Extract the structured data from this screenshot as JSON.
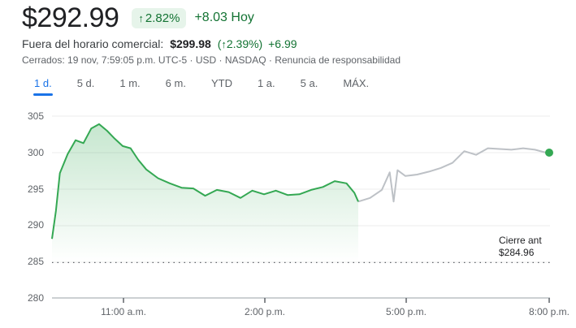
{
  "header": {
    "price": "$292.99",
    "change_pct": "2.82%",
    "change_pct_icon": "arrow-up-icon",
    "change_abs": "+8.03 Hoy"
  },
  "after_hours": {
    "label": "Fuera del horario comercial:",
    "price": "$299.98",
    "pct_open": "(",
    "pct_icon": "arrow-up-icon",
    "pct": "2.39%)",
    "abs": "+6.99"
  },
  "meta": {
    "status": "Cerrados: 19 nov, 7:59:05 p.m. UTC-5 · USD · NASDAQ · ",
    "disclaimer": "Renuncia de responsabilidad"
  },
  "tabs": [
    {
      "label": "1 d.",
      "active": true
    },
    {
      "label": "5 d."
    },
    {
      "label": "1 m."
    },
    {
      "label": "6 m."
    },
    {
      "label": "YTD"
    },
    {
      "label": "1 a."
    },
    {
      "label": "5 a."
    },
    {
      "label": "MÁX."
    }
  ],
  "colors": {
    "positive": "#137333",
    "line_regular": "#34a853",
    "line_after_hours": "#bdc1c6",
    "accent": "#1a73e8",
    "badge_bg": "#e6f4ea"
  },
  "prev_close": {
    "label": "Cierre ant",
    "value": "$284.96"
  },
  "chart_data": {
    "type": "line",
    "title": "",
    "xlabel": "",
    "ylabel": "",
    "ylim": [
      280,
      305
    ],
    "y_ticks": [
      305,
      300,
      295,
      290,
      285,
      280
    ],
    "x_ticks": [
      "11:00 a.m.",
      "2:00 p.m.",
      "5:00 p.m.",
      "8:00 p.m."
    ],
    "grid": true,
    "reference_line": {
      "label": "Cierre ant",
      "value": 284.96
    },
    "series": [
      {
        "name": "Regular session",
        "color": "#34a853",
        "x": [
          "9:30",
          "9:35",
          "9:40",
          "9:50",
          "10:00",
          "10:10",
          "10:20",
          "10:30",
          "10:40",
          "10:50",
          "11:00",
          "11:10",
          "11:20",
          "11:30",
          "11:45",
          "12:00",
          "12:15",
          "12:30",
          "12:45",
          "1:00",
          "1:15",
          "1:30",
          "1:45",
          "2:00",
          "2:15",
          "2:30",
          "2:45",
          "3:00",
          "3:15",
          "3:30",
          "3:45",
          "3:55",
          "4:00"
        ],
        "values": [
          288.2,
          292.0,
          297.2,
          299.8,
          301.7,
          301.3,
          303.3,
          303.9,
          303.0,
          301.9,
          300.9,
          300.6,
          299.0,
          297.7,
          296.5,
          295.8,
          295.2,
          295.1,
          294.1,
          294.9,
          294.6,
          293.8,
          294.8,
          294.3,
          294.8,
          294.2,
          294.3,
          294.9,
          295.3,
          296.1,
          295.8,
          294.5,
          293.3
        ]
      },
      {
        "name": "After hours",
        "color": "#bdc1c6",
        "x": [
          "4:00",
          "4:15",
          "4:30",
          "4:40",
          "4:45",
          "4:50",
          "5:00",
          "5:15",
          "5:30",
          "5:45",
          "6:00",
          "6:15",
          "6:30",
          "6:45",
          "7:00",
          "7:15",
          "7:30",
          "7:45",
          "7:59"
        ],
        "values": [
          293.3,
          293.8,
          294.9,
          297.3,
          293.3,
          297.6,
          296.8,
          297.0,
          297.4,
          297.9,
          298.6,
          300.2,
          299.7,
          300.6,
          300.5,
          300.4,
          300.6,
          300.4,
          300.0
        ]
      }
    ]
  }
}
